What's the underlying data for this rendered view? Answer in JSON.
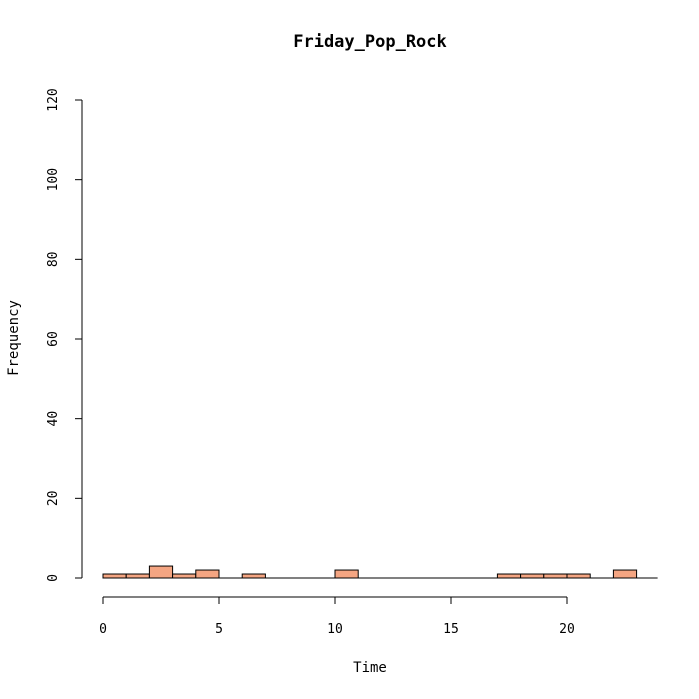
{
  "chart_data": {
    "type": "bar",
    "title": "Friday_Pop_Rock",
    "xlabel": "Time",
    "ylabel": "Frequency",
    "bin_width": 1,
    "bins": [
      {
        "start": 0,
        "end": 1,
        "count": 1
      },
      {
        "start": 1,
        "end": 2,
        "count": 1
      },
      {
        "start": 2,
        "end": 3,
        "count": 3
      },
      {
        "start": 3,
        "end": 4,
        "count": 1
      },
      {
        "start": 4,
        "end": 5,
        "count": 2
      },
      {
        "start": 5,
        "end": 6,
        "count": 0
      },
      {
        "start": 6,
        "end": 7,
        "count": 1
      },
      {
        "start": 7,
        "end": 8,
        "count": 0
      },
      {
        "start": 8,
        "end": 9,
        "count": 0
      },
      {
        "start": 9,
        "end": 10,
        "count": 0
      },
      {
        "start": 10,
        "end": 11,
        "count": 2
      },
      {
        "start": 11,
        "end": 12,
        "count": 0
      },
      {
        "start": 12,
        "end": 13,
        "count": 0
      },
      {
        "start": 13,
        "end": 14,
        "count": 0
      },
      {
        "start": 14,
        "end": 15,
        "count": 0
      },
      {
        "start": 15,
        "end": 16,
        "count": 0
      },
      {
        "start": 16,
        "end": 17,
        "count": 0
      },
      {
        "start": 17,
        "end": 18,
        "count": 1
      },
      {
        "start": 18,
        "end": 19,
        "count": 1
      },
      {
        "start": 19,
        "end": 20,
        "count": 1
      },
      {
        "start": 20,
        "end": 21,
        "count": 1
      },
      {
        "start": 21,
        "end": 22,
        "count": 0
      },
      {
        "start": 22,
        "end": 23,
        "count": 2
      }
    ],
    "xlim": [
      0,
      24
    ],
    "ylim": [
      0,
      120
    ],
    "x_ticks": [
      0,
      5,
      10,
      15,
      20
    ],
    "x_tick_labels": [
      "0",
      "5",
      "10",
      "15",
      "20"
    ],
    "y_ticks": [
      0,
      20,
      40,
      60,
      80,
      100,
      120
    ],
    "y_tick_labels": [
      "0",
      "20",
      "40",
      "60",
      "80",
      "100",
      "120"
    ],
    "grid": false,
    "legend": "none",
    "bar_color": "#F4A582",
    "edge_color": "#000000"
  }
}
